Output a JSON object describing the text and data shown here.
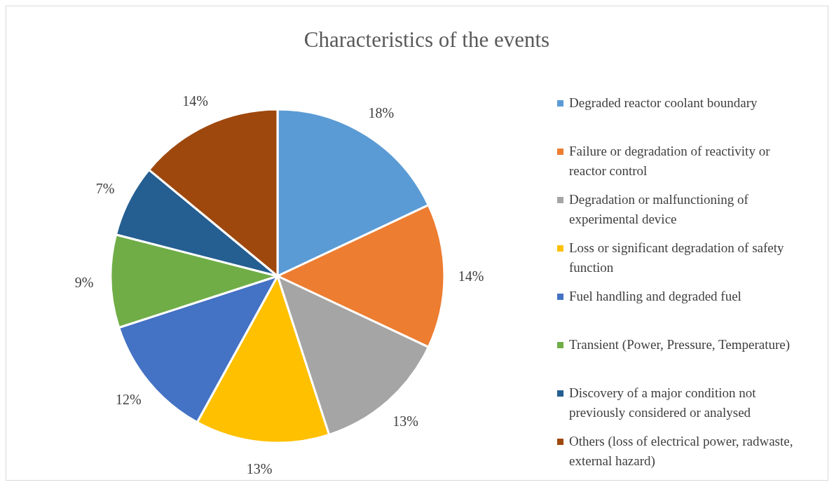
{
  "chart_data": {
    "type": "pie",
    "title": "Characteristics of the events",
    "categories": [
      "Degraded reactor coolant boundary",
      "Failure or degradation of reactivity or reactor control",
      "Degradation or malfunctioning of experimental device",
      "Loss or significant degradation of safety function",
      "Fuel handling and degraded fuel",
      "Transient (Power, Pressure, Temperature)",
      "Discovery of a major condition not previously considered or analysed",
      "Others (loss of electrical power, radwaste, external hazard)"
    ],
    "values": [
      18,
      14,
      13,
      13,
      12,
      9,
      7,
      14
    ],
    "colors": [
      "#5b9bd5",
      "#ed7d31",
      "#a5a5a5",
      "#ffc000",
      "#4472c4",
      "#70ad47",
      "#255e91",
      "#9e480e"
    ],
    "value_labels": [
      "18%",
      "14%",
      "13%",
      "13%",
      "12%",
      "9%",
      "7%",
      "14%"
    ],
    "legend": "right"
  }
}
